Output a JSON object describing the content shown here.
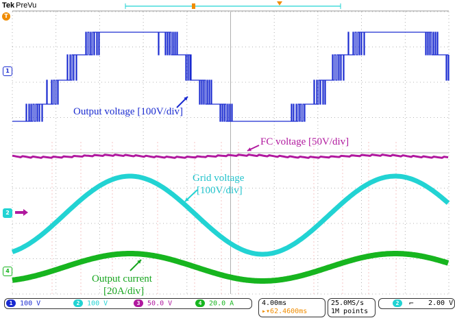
{
  "header": {
    "brand": "Tek",
    "mode": "PreVu"
  },
  "annotations": {
    "output_voltage": "Output voltage [100V/div]",
    "fc_voltage": "FC voltage [50V/div]",
    "grid_voltage_line1": "Grid voltage",
    "grid_voltage_line2": "[100V/div]",
    "output_current_line1": "Output current",
    "output_current_line2": "[20A/div]"
  },
  "channels": [
    {
      "num": "1",
      "scale": "100 V",
      "color": "#1a2bd0"
    },
    {
      "num": "2",
      "scale": "100 V",
      "color": "#22d3d3"
    },
    {
      "num": "3",
      "scale": "50.0 V",
      "color": "#b0189e"
    },
    {
      "num": "4",
      "scale": "20.0 A",
      "color": "#17b51f"
    }
  ],
  "timebase": {
    "time_div": "4.00ms",
    "trigger_pos": "62.4600ms"
  },
  "acquisition": {
    "rate": "25.0MS/s",
    "points": "1M points"
  },
  "trigger": {
    "source": "2",
    "slope_icon": "falling-edge-icon",
    "level": "2.00 V"
  },
  "side_markers": {
    "ch1": "1",
    "ch2": "2",
    "ch4": "4",
    "top": "T"
  },
  "colors": {
    "ch1": "#1a2bd0",
    "ch2": "#22d3d3",
    "ch3": "#b0189e",
    "ch4": "#17b51f",
    "grid": "#9a9a9a",
    "trigger_marker": "#f08c00"
  }
}
